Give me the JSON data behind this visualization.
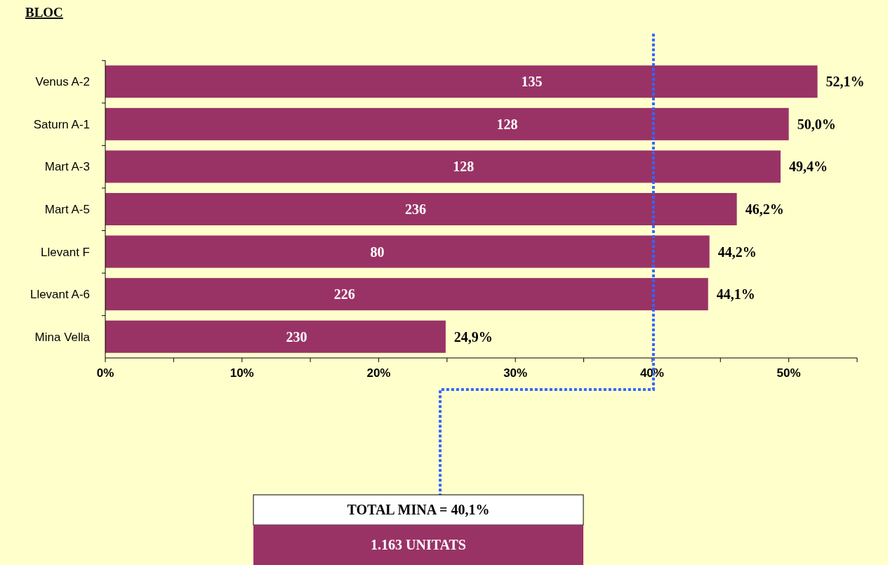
{
  "chart_data": {
    "type": "bar",
    "orientation": "horizontal",
    "ylabel": "BLOC",
    "categories": [
      "Venus A-2",
      "Saturn A-1",
      "Mart A-3",
      "Mart A-5",
      "Llevant F",
      "Llevant A-6",
      "Mina Vella"
    ],
    "values": [
      52.1,
      50.0,
      49.4,
      46.2,
      44.2,
      44.1,
      24.9
    ],
    "value_labels": [
      "52,1%",
      "50,0%",
      "49,4%",
      "46,2%",
      "44,2%",
      "44,1%",
      "24,9%"
    ],
    "color": "#993366",
    "xlim": [
      0,
      55
    ],
    "xticks": [
      {
        "value": 0,
        "label": "0%"
      },
      {
        "value": 5,
        "label": null
      },
      {
        "value": 10,
        "label": "10%"
      },
      {
        "value": 15,
        "label": null
      },
      {
        "value": 20,
        "label": "20%"
      },
      {
        "value": 25,
        "label": null
      },
      {
        "value": 30,
        "label": "30%"
      },
      {
        "value": 35,
        "label": null
      },
      {
        "value": 40,
        "label": "40%"
      },
      {
        "value": 45,
        "label": null
      },
      {
        "value": 50,
        "label": "50%"
      },
      {
        "value": 55,
        "label": null
      }
    ],
    "grid": false,
    "ref_lines": [
      {
        "axis": "x",
        "value": 40.1,
        "label": "TOTAL MINA = 40,1%",
        "color": "#3366ff",
        "line_style": "dotted"
      }
    ],
    "annotations": [
      {
        "text": "135",
        "x": 31.2,
        "y": "Venus A-2"
      },
      {
        "text": "128",
        "x": 29.4,
        "y": "Saturn A-1"
      },
      {
        "text": "128",
        "x": 26.2,
        "y": "Mart A-3"
      },
      {
        "text": "236",
        "x": 22.7,
        "y": "Mart A-5"
      },
      {
        "text": "80",
        "x": 19.9,
        "y": "Llevant F"
      },
      {
        "text": "226",
        "x": 17.5,
        "y": "Llevant A-6"
      },
      {
        "text": "230",
        "x": 14.0,
        "y": "Mina Vella"
      },
      "1.163 UNITATS"
    ]
  }
}
